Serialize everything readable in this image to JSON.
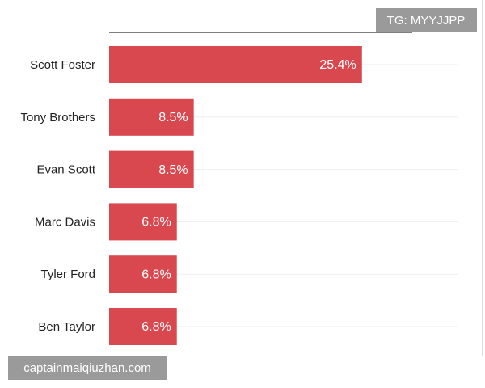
{
  "chart_data": {
    "type": "hbar",
    "categories": [
      "Scott Foster",
      "Tony Brothers",
      "Evan Scott",
      "Marc Davis",
      "Tyler Ford",
      "Ben Taylor"
    ],
    "values": [
      25.4,
      8.5,
      8.5,
      6.8,
      6.8,
      6.8
    ],
    "value_labels": [
      "25.4%",
      "8.5%",
      "8.5%",
      "6.8%",
      "6.8%",
      "6.8%"
    ],
    "color": "#d9474f",
    "xlim": [
      0,
      35
    ]
  },
  "watermarks": {
    "top": "TG: MYYJJPP",
    "bottom": "captainmaiqiuzhan.com"
  }
}
